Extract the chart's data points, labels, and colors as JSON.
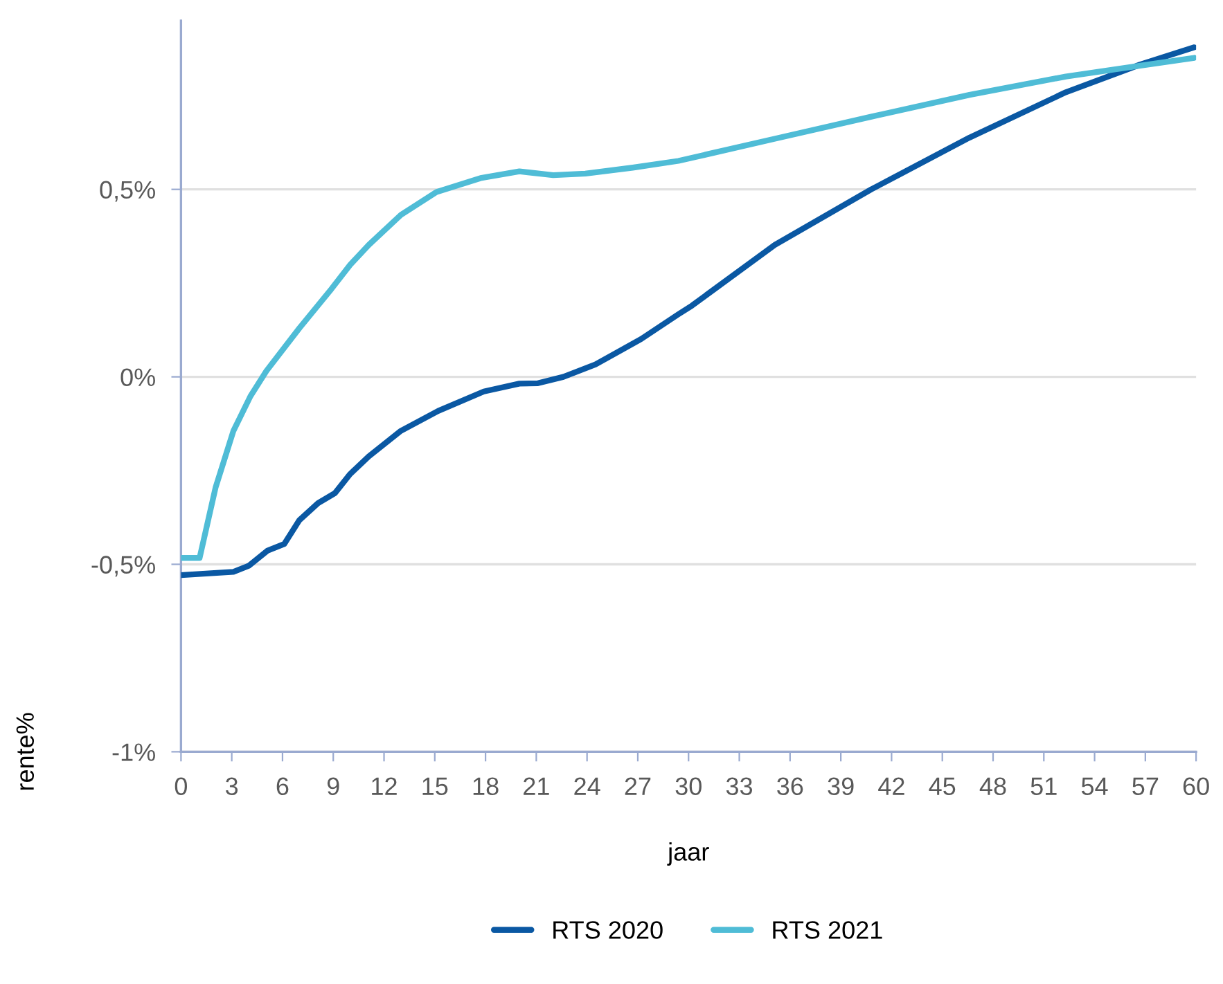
{
  "chart_data": {
    "type": "line",
    "xlabel": "jaar",
    "ylabel": "rente%",
    "xlim": [
      0,
      60
    ],
    "xticks": [
      0,
      3,
      6,
      9,
      12,
      15,
      18,
      21,
      24,
      27,
      30,
      33,
      36,
      39,
      42,
      45,
      48,
      51,
      54,
      57,
      60
    ],
    "ylim": [
      -1,
      0.95
    ],
    "yticks": [
      {
        "value": -1,
        "label": "-1%"
      },
      {
        "value": -0.5,
        "label": "-0,5%"
      },
      {
        "value": 0,
        "label": "0%"
      },
      {
        "value": 0.5,
        "label": "0,5%"
      }
    ],
    "grid": "y",
    "legend": "bottom",
    "line_style": "solid",
    "marker": "none",
    "series": [
      {
        "name": "RTS 2020",
        "color": "#0a58a3",
        "x": [
          0,
          3.1,
          4,
          5.1,
          6.1,
          7,
          8.1,
          9.1,
          10,
          11.1,
          13,
          15.2,
          17.9,
          20,
          21.1,
          22.6,
          24.5,
          27.2,
          29.4,
          30.2,
          35.1,
          40.8,
          46.6,
          52.3,
          56.7,
          59.9
        ],
        "values": [
          -0.529,
          -0.52,
          -0.504,
          -0.464,
          -0.446,
          -0.382,
          -0.337,
          -0.31,
          -0.259,
          -0.212,
          -0.144,
          -0.091,
          -0.039,
          -0.018,
          -0.017,
          0.0,
          0.033,
          0.101,
          0.167,
          0.19,
          0.352,
          0.5,
          0.638,
          0.759,
          0.833,
          0.879
        ]
      },
      {
        "name": "RTS 2021",
        "color": "#4fbcd6",
        "x": [
          0,
          1.1,
          2.05,
          3.1,
          4.1,
          5.05,
          7,
          8.9,
          10,
          11.1,
          13,
          15.1,
          17.7,
          20,
          22,
          23.9,
          26.7,
          29.4,
          35.1,
          40.8,
          46.6,
          52.3,
          56.7,
          59.9
        ],
        "values": [
          -0.483,
          -0.483,
          -0.294,
          -0.144,
          -0.052,
          0.016,
          0.13,
          0.235,
          0.299,
          0.352,
          0.432,
          0.493,
          0.53,
          0.548,
          0.538,
          0.542,
          0.558,
          0.576,
          0.635,
          0.694,
          0.752,
          0.801,
          0.83,
          0.851
        ]
      }
    ]
  }
}
